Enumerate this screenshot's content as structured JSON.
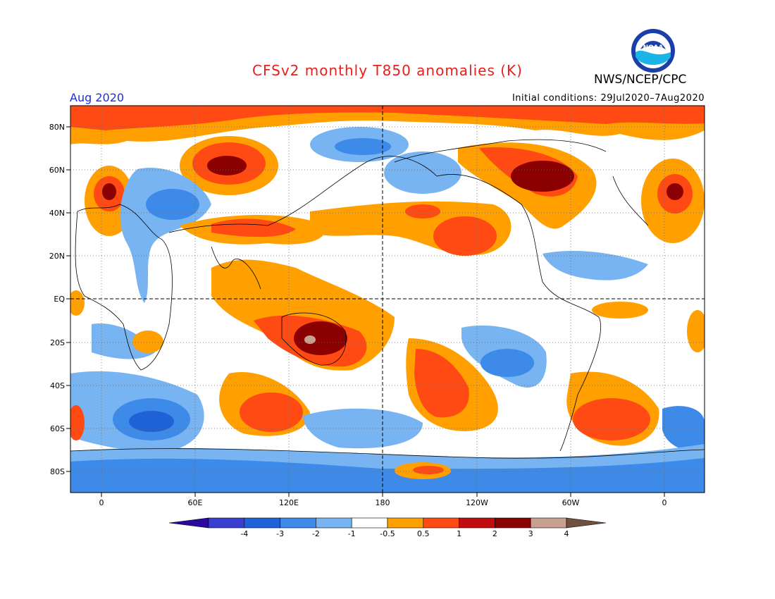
{
  "title": "CFSv2 monthly T850 anomalies (K)",
  "agency": "NWS/NCEP/CPC",
  "logo_text": "NOAA",
  "period": "Aug 2020",
  "initial_conditions": "Initial conditions: 29Jul2020–7Aug2020",
  "map": {
    "lat_labels": [
      "80N",
      "60N",
      "40N",
      "20N",
      "EQ",
      "20S",
      "40S",
      "60S",
      "80S"
    ],
    "lon_labels": [
      "0",
      "60E",
      "120E",
      "180",
      "120W",
      "60W",
      "0"
    ],
    "colors": {
      "land_outline": "#000000"
    }
  },
  "colorbar": {
    "colors": [
      "#2a0a9e",
      "#3b3fd1",
      "#1f62d8",
      "#3d8ae8",
      "#78b4f2",
      "#ffffff",
      "#ff9f00",
      "#ff4a14",
      "#c10c10",
      "#8b0000",
      "#c8a090",
      "#70503e"
    ],
    "labels": [
      "-4",
      "-3",
      "-2",
      "-1",
      "-0.5",
      "0.5",
      "1",
      "2",
      "3",
      "4"
    ]
  }
}
